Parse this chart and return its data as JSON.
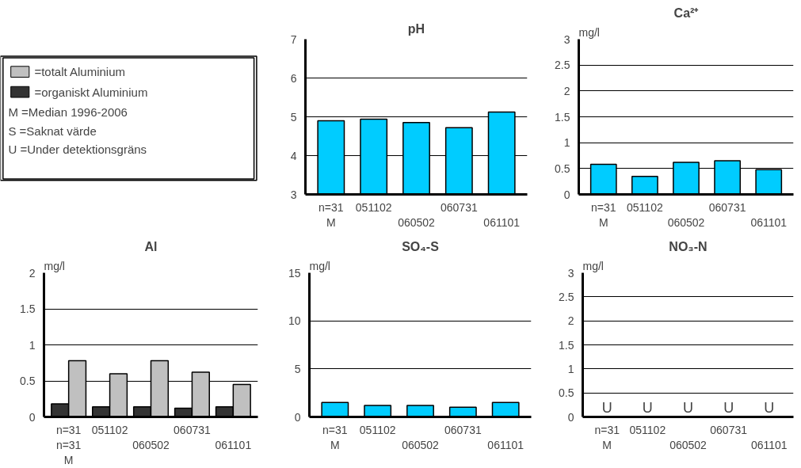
{
  "chart_data": [
    {
      "type": "other",
      "series": [
        {
          "name": "=totalt Aluminium",
          "color": "#c0c0c0"
        },
        {
          "name": "=organiskt Aluminium",
          "color": "#333333"
        }
      ],
      "annotations": [
        "M =Median 1996-2006",
        "S =Saknat värde",
        "U =Under detektionsgräns"
      ]
    },
    {
      "type": "bar",
      "title": "pH",
      "categories": [
        "n=31\nM",
        "051102",
        "\n060502",
        "060731",
        "\n061101"
      ],
      "values": [
        4.9,
        4.94,
        4.85,
        4.72,
        5.12
      ],
      "color": "#00ccff",
      "ylim": [
        3,
        7
      ],
      "yticks": [
        3,
        4,
        5,
        6,
        7
      ],
      "grid": "y"
    },
    {
      "type": "bar",
      "title": "Ca²⁺",
      "ylabel": "mg/l",
      "categories": [
        "n=31\nM",
        "051102",
        "\n060502",
        "060731",
        "\n061101"
      ],
      "values": [
        0.58,
        0.35,
        0.62,
        0.65,
        0.48
      ],
      "color": "#00ccff",
      "ylim": [
        0,
        3
      ],
      "yticks": [
        0,
        0.5,
        1,
        1.5,
        2,
        2.5,
        3
      ],
      "grid": "y"
    },
    {
      "type": "bar",
      "title": "Al",
      "ylabel": "mg/l",
      "categories": [
        "n=31\nn=31\nM",
        "051102",
        "\n060502",
        "060731",
        "\n061101"
      ],
      "series": [
        {
          "color": "#333333",
          "values": [
            0.18,
            0.14,
            0.14,
            0.12,
            0.14
          ]
        },
        {
          "color": "#c0c0c0",
          "values": [
            0.78,
            0.6,
            0.78,
            0.62,
            0.45
          ]
        }
      ],
      "ylim": [
        0,
        2
      ],
      "yticks": [
        0,
        0.5,
        1,
        1.5,
        2
      ],
      "grid": "y"
    },
    {
      "type": "bar",
      "title": "SO₄-S",
      "ylabel": "mg/l",
      "categories": [
        "n=31\nM",
        "051102",
        "\n060502",
        "060731",
        "\n061101"
      ],
      "values": [
        1.5,
        1.2,
        1.2,
        1.0,
        1.5
      ],
      "color": "#00ccff",
      "ylim": [
        0,
        15
      ],
      "yticks": [
        0,
        5,
        10,
        15
      ],
      "grid": "y"
    },
    {
      "type": "bar",
      "title": "NO₃-N",
      "ylabel": "mg/l",
      "categories": [
        "n=31\nM",
        "051102",
        "\n060502",
        "060731",
        "\n061101"
      ],
      "values": [
        null,
        null,
        null,
        null,
        null
      ],
      "value_labels": [
        "U",
        "U",
        "U",
        "U",
        "U"
      ],
      "color": "#00ccff",
      "ylim": [
        0,
        3
      ],
      "yticks": [
        0,
        0.5,
        1,
        1.5,
        2,
        2.5,
        3
      ],
      "grid": "y"
    }
  ]
}
